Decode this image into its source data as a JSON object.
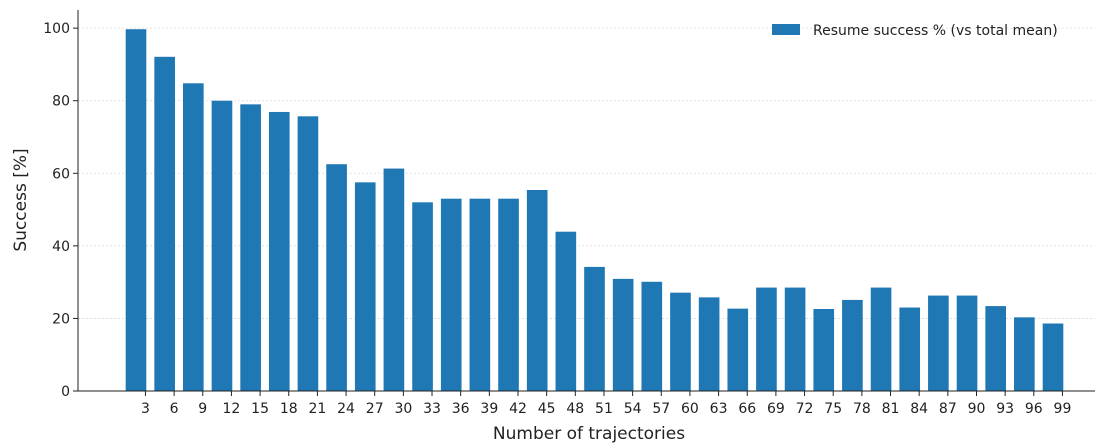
{
  "chart_data": {
    "type": "bar",
    "categories": [
      "3",
      "6",
      "9",
      "12",
      "15",
      "18",
      "21",
      "24",
      "27",
      "30",
      "33",
      "36",
      "39",
      "42",
      "45",
      "48",
      "51",
      "54",
      "57",
      "60",
      "63",
      "66",
      "69",
      "72",
      "75",
      "78",
      "81",
      "84",
      "87",
      "90",
      "93",
      "96",
      "99"
    ],
    "series": [
      {
        "name": "Resume success % (vs total mean)",
        "values": [
          99.7,
          92.1,
          84.8,
          80.0,
          79.0,
          76.9,
          75.7,
          62.5,
          57.5,
          61.3,
          52.0,
          53.0,
          53.0,
          53.0,
          55.4,
          43.9,
          34.2,
          30.9,
          30.1,
          27.1,
          25.8,
          22.7,
          28.5,
          28.5,
          22.6,
          25.1,
          28.5,
          23.0,
          26.3,
          26.3,
          23.4,
          20.3,
          18.6
        ],
        "color": "#1f77b4"
      }
    ],
    "xlabel": "Number of trajectories",
    "ylabel": "Success [%]",
    "ylim": [
      0,
      105
    ],
    "yticks": [
      "0",
      "20",
      "40",
      "60",
      "80",
      "100"
    ],
    "grid": true,
    "legend_position": "top-right"
  }
}
